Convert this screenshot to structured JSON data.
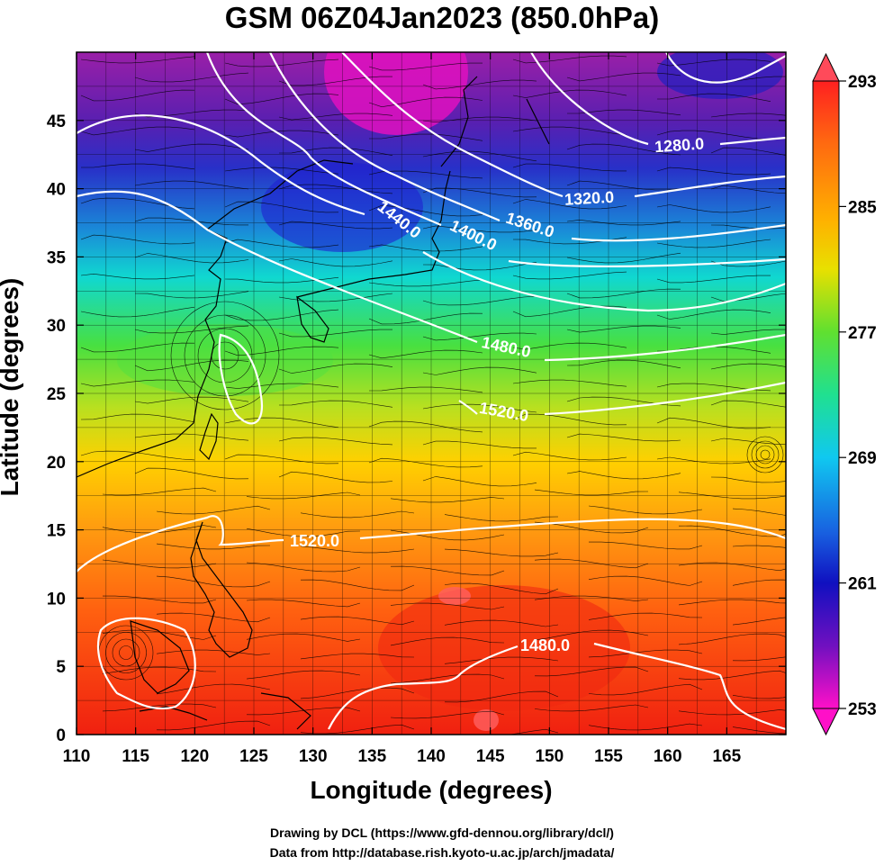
{
  "title": "GSM 06Z04Jan2023 (850.0hPa)",
  "xaxis": {
    "label": "Longitude (degrees)",
    "ticks": [
      "110",
      "115",
      "120",
      "125",
      "130",
      "135",
      "140",
      "145",
      "150",
      "155",
      "160",
      "165"
    ],
    "range": [
      110,
      170
    ]
  },
  "yaxis": {
    "label": "Latitude  (degrees)",
    "ticks": [
      "0",
      "5",
      "10",
      "15",
      "20",
      "25",
      "30",
      "35",
      "40",
      "45"
    ],
    "range": [
      0,
      50
    ]
  },
  "colorbar": {
    "ticks": [
      "293",
      "285",
      "277",
      "269",
      "261",
      "253"
    ],
    "range": [
      253,
      293
    ]
  },
  "contours": {
    "labels": [
      "1280.0",
      "1320.0",
      "1360.0",
      "1400.0",
      "1440.0",
      "1480.0",
      "1520.0",
      "1520.0",
      "1480.0"
    ]
  },
  "credits": {
    "line1": "Drawing by DCL (https://www.gfd-dennou.org/library/dcl/)",
    "line2": "Data from http://database.rish.kyoto-u.ac.jp/arch/jmadata/"
  }
}
